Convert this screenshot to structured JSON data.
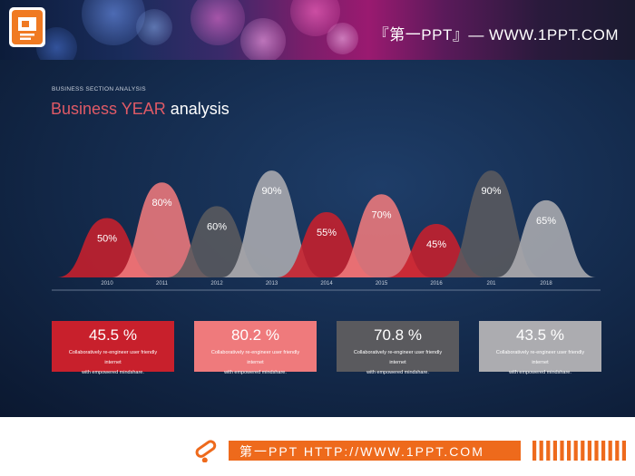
{
  "banner": {
    "title": "『第一PPT』— WWW.1PPT.COM"
  },
  "section": {
    "subtitle": "BUSINESS SECTION ANALYSIS",
    "title_highlight": "Business YEAR",
    "title_rest": " analysis"
  },
  "colors": {
    "red": "#c8202c",
    "pink": "#ef7a7c",
    "darkgray": "#5a5a5e",
    "lightgray": "#acacb0",
    "orange": "#ee6a1c"
  },
  "chart_data": {
    "type": "area",
    "categories": [
      "2010",
      "2011",
      "2012",
      "2013",
      "2014",
      "2015",
      "2016",
      "201",
      "2018"
    ],
    "values": [
      50,
      80,
      60,
      90,
      55,
      70,
      45,
      90,
      65
    ],
    "labels": [
      "50%",
      "80%",
      "60%",
      "90%",
      "55%",
      "70%",
      "45%",
      "90%",
      "65%"
    ],
    "colors": [
      "red",
      "pink",
      "darkgray",
      "lightgray",
      "red",
      "pink",
      "red",
      "darkgray",
      "lightgray"
    ]
  },
  "stats": [
    {
      "value": "45.5 %",
      "line1": "Collaboratively re-engineer user friendly internet",
      "line2": "with empowered mindshare.",
      "color": "red"
    },
    {
      "value": "80.2 %",
      "line1": "Collaboratively re-engineer user friendly internet",
      "line2": "with empowered mindshare.",
      "color": "pink"
    },
    {
      "value": "70.8 %",
      "line1": "Collaboratively re-engineer user friendly internet",
      "line2": "with empowered mindshare.",
      "color": "darkgray"
    },
    {
      "value": "43.5 %",
      "line1": "Collaboratively re-engineer user friendly internet",
      "line2": "with empowered mindshare.",
      "color": "lightgray"
    }
  ],
  "footer": {
    "text": "第一PPT HTTP://WWW.1PPT.COM"
  }
}
